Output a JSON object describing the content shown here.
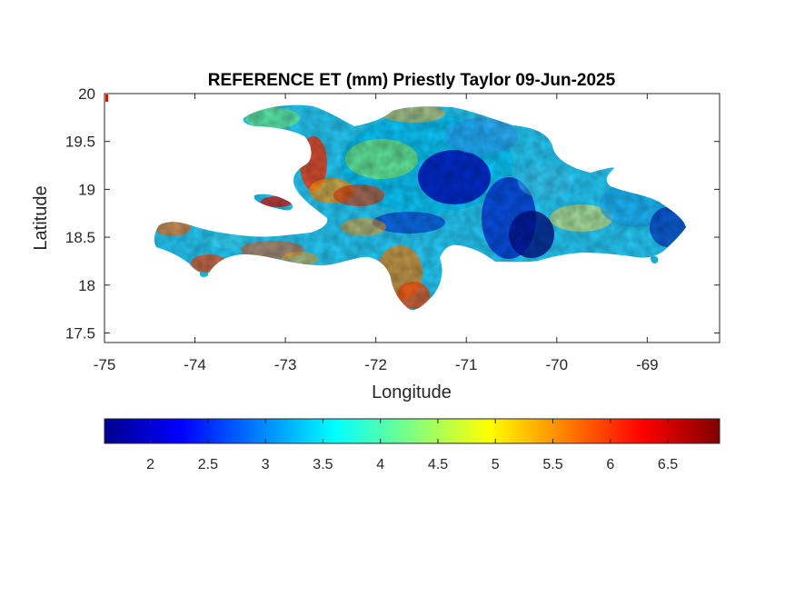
{
  "title": "REFERENCE ET (mm) Priestly Taylor 09-Jun-2025",
  "xlabel": "Longitude",
  "ylabel": "Latitude",
  "x_ticks": [
    "-75",
    "-74",
    "-73",
    "-72",
    "-71",
    "-70",
    "-69"
  ],
  "y_ticks": [
    "20",
    "19.5",
    "19",
    "18.5",
    "18",
    "17.5"
  ],
  "colorbar": {
    "ticks": [
      "2",
      "2.5",
      "3",
      "3.5",
      "4",
      "4.5",
      "5",
      "5.5",
      "6",
      "6.5"
    ],
    "colormap": "jet"
  },
  "chart_data": {
    "type": "heatmap",
    "title": "REFERENCE ET (mm) Priestly Taylor 09-Jun-2025",
    "xlabel": "Longitude",
    "ylabel": "Latitude",
    "xlim": [
      -75,
      -68.2
    ],
    "ylim": [
      17.4,
      20
    ],
    "clim": [
      1.6,
      6.95
    ],
    "colormap": "jet",
    "x_ticks": [
      -75,
      -74,
      -73,
      -72,
      -71,
      -70,
      -69
    ],
    "y_ticks": [
      17.5,
      18,
      18.5,
      19,
      19.5,
      20
    ],
    "colorbar_ticks": [
      2,
      2.5,
      3,
      3.5,
      4,
      4.5,
      5,
      5.5,
      6,
      6.5
    ]
  }
}
